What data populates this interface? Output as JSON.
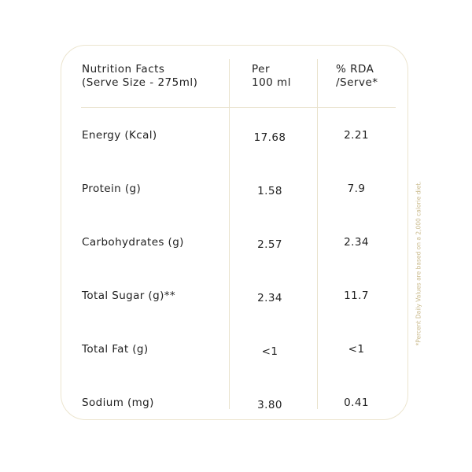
{
  "header": {
    "label_line1": "Nutrition Facts",
    "label_line2": "(Serve Size - 275ml)",
    "per_line1": "Per",
    "per_line2": "100 ml",
    "rda_line1": "% RDA",
    "rda_line2": "/Serve*"
  },
  "rows": [
    {
      "name": "Energy (Kcal)",
      "per100": "17.68",
      "rda": "2.21"
    },
    {
      "name": "Protein (g)",
      "per100": "1.58",
      "rda": "7.9"
    },
    {
      "name": "Carbohydrates (g)",
      "per100": "2.57",
      "rda": "2.34"
    },
    {
      "name": "Total Sugar (g)**",
      "per100": "2.34",
      "rda": "11.7"
    },
    {
      "name": "Total Fat (g)",
      "per100": "<1",
      "rda": "<1"
    },
    {
      "name": "Sodium (mg)",
      "per100": "3.80",
      "rda": "0.41"
    }
  ],
  "footnote": "*Percent Daily Values are based on a 2,000 calorie diet.",
  "colors": {
    "border": "#ece5cf",
    "footnote": "#c9b98a"
  }
}
